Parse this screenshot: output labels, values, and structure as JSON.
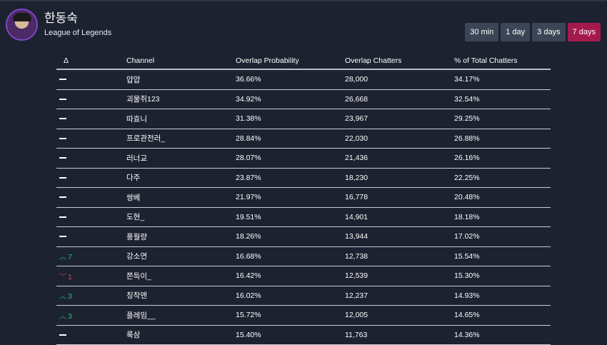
{
  "header": {
    "streamer_name": "한동숙",
    "game": "League of Legends"
  },
  "ranges": [
    {
      "label": "30 min",
      "active": false
    },
    {
      "label": "1 day",
      "active": false
    },
    {
      "label": "3 days",
      "active": false
    },
    {
      "label": "7 days",
      "active": true
    }
  ],
  "table": {
    "columns": [
      "Δ",
      "Channel",
      "Overlap Probability",
      "Overlap Chatters",
      "% of Total Chatters"
    ],
    "rows": [
      {
        "delta_dir": "none",
        "delta": "",
        "channel": "얍얍",
        "probability": "36.66%",
        "chatters": "28,000",
        "percent": "34.17%"
      },
      {
        "delta_dir": "none",
        "delta": "",
        "channel": "괴물쥐123",
        "probability": "34.92%",
        "chatters": "26,668",
        "percent": "32.54%"
      },
      {
        "delta_dir": "none",
        "delta": "",
        "channel": "따효니",
        "probability": "31.38%",
        "chatters": "23,967",
        "percent": "29.25%"
      },
      {
        "delta_dir": "none",
        "delta": "",
        "channel": "프로관전러_",
        "probability": "28.84%",
        "chatters": "22,030",
        "percent": "26.88%"
      },
      {
        "delta_dir": "none",
        "delta": "",
        "channel": "러너교",
        "probability": "28.07%",
        "chatters": "21,436",
        "percent": "26.16%"
      },
      {
        "delta_dir": "none",
        "delta": "",
        "channel": "다주",
        "probability": "23.87%",
        "chatters": "18,230",
        "percent": "22.25%"
      },
      {
        "delta_dir": "none",
        "delta": "",
        "channel": "쌍베",
        "probability": "21.97%",
        "chatters": "16,778",
        "percent": "20.48%"
      },
      {
        "delta_dir": "none",
        "delta": "",
        "channel": "도현_",
        "probability": "19.51%",
        "chatters": "14,901",
        "percent": "18.18%"
      },
      {
        "delta_dir": "none",
        "delta": "",
        "channel": "풍월량",
        "probability": "18.26%",
        "chatters": "13,944",
        "percent": "17.02%"
      },
      {
        "delta_dir": "up",
        "delta": "7",
        "channel": "강소연",
        "probability": "16.68%",
        "chatters": "12,738",
        "percent": "15.54%"
      },
      {
        "delta_dir": "down",
        "delta": "1",
        "channel": "쫀득이_",
        "probability": "16.42%",
        "chatters": "12,539",
        "percent": "15.30%"
      },
      {
        "delta_dir": "up",
        "delta": "3",
        "channel": "칭착맨",
        "probability": "16.02%",
        "chatters": "12,237",
        "percent": "14.93%"
      },
      {
        "delta_dir": "up",
        "delta": "3",
        "channel": "플레임__",
        "probability": "15.72%",
        "chatters": "12,005",
        "percent": "14.65%"
      },
      {
        "delta_dir": "none",
        "delta": "",
        "channel": "룩삼",
        "probability": "15.40%",
        "chatters": "11,763",
        "percent": "14.36%"
      }
    ]
  }
}
